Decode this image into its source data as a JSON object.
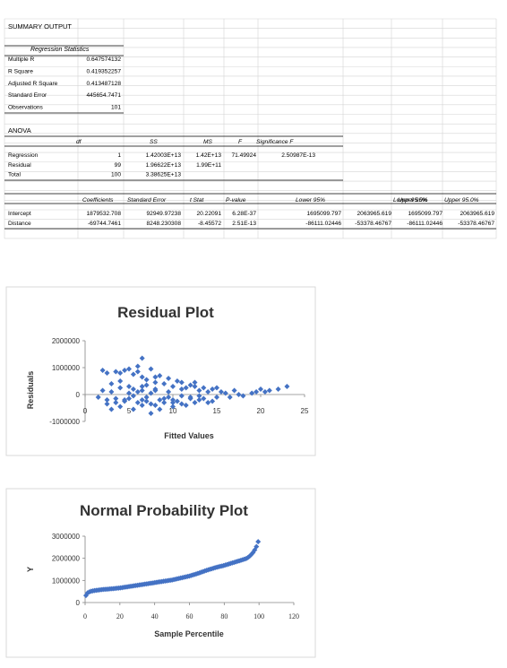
{
  "summary": {
    "title": "SUMMARY OUTPUT",
    "reg_stats_header": "Regression Statistics",
    "reg_stats": [
      {
        "label": "Multiple R",
        "value": "0.647574132"
      },
      {
        "label": "R Square",
        "value": "0.419352257"
      },
      {
        "label": "Adjusted R Square",
        "value": "0.413487128"
      },
      {
        "label": "Standard Error",
        "value": "445654.7471"
      },
      {
        "label": "Observations",
        "value": "101"
      }
    ],
    "anova_title": "ANOVA",
    "anova_headers": [
      "df",
      "SS",
      "MS",
      "F",
      "Significance F"
    ],
    "anova_rows": [
      {
        "label": "Regression",
        "df": "1",
        "ss": "1.42003E+13",
        "ms": "1.42E+13",
        "f": "71.49924",
        "sigf": "2.50987E-13"
      },
      {
        "label": "Residual",
        "df": "99",
        "ss": "1.96622E+13",
        "ms": "1.99E+11",
        "f": "",
        "sigf": ""
      },
      {
        "label": "Total",
        "df": "100",
        "ss": "3.38625E+13",
        "ms": "",
        "f": "",
        "sigf": ""
      }
    ],
    "coef_headers": [
      "Coefficients",
      "Standard Error",
      "t Stat",
      "P-value",
      "Lower 95%",
      "Upper 95%",
      "Lower 95.0%",
      "Upper 95.0%"
    ],
    "coef_rows": [
      {
        "label": "Intercept",
        "values": [
          "1879532.708",
          "92949.97238",
          "20.22091",
          "6.28E-37",
          "1695099.797",
          "2063965.619",
          "1695099.797",
          "2063965.619"
        ]
      },
      {
        "label": "Distance",
        "values": [
          "-69744.7461",
          "8248.230308",
          "-8.45572",
          "2.51E-13",
          "-86111.02446",
          "-53378.46767",
          "-86111.02446",
          "-53378.46767"
        ]
      }
    ]
  },
  "colors": {
    "marker": "#4472c4",
    "grid": "#d9d9d9",
    "axis": "#868686"
  },
  "chart_data": [
    {
      "type": "scatter",
      "title": "Residual Plot",
      "xlabel": "Fitted Values",
      "ylabel": "Residuals",
      "xlim": [
        0,
        25
      ],
      "ylim": [
        -1000000,
        2000000
      ],
      "xticks": [
        "0",
        "5",
        "10",
        "15",
        "20",
        "25"
      ],
      "yticks": [
        "-1000000",
        "0",
        "1000000",
        "2000000"
      ],
      "points": [
        [
          1.5,
          -100000
        ],
        [
          2,
          150000
        ],
        [
          2.5,
          -350000
        ],
        [
          3,
          -550000
        ],
        [
          3,
          100000
        ],
        [
          3.5,
          -300000
        ],
        [
          4,
          250000
        ],
        [
          4,
          -450000
        ],
        [
          4.5,
          -250000
        ],
        [
          5,
          -150000
        ],
        [
          5,
          50000
        ],
        [
          5.5,
          200000
        ],
        [
          5.5,
          -550000
        ],
        [
          6,
          -300000
        ],
        [
          6,
          100000
        ],
        [
          6.5,
          -400000
        ],
        [
          6.5,
          300000
        ],
        [
          7,
          -100000
        ],
        [
          7,
          -250000
        ],
        [
          7.5,
          -700000
        ],
        [
          7.5,
          50000
        ],
        [
          8,
          -400000
        ],
        [
          8,
          150000
        ],
        [
          8.5,
          -200000
        ],
        [
          8.5,
          -550000
        ],
        [
          9,
          -300000
        ],
        [
          9.5,
          -100000
        ],
        [
          10,
          -450000
        ],
        [
          10,
          -200000
        ],
        [
          10.5,
          -250000
        ],
        [
          11,
          -350000
        ],
        [
          11,
          -50000
        ],
        [
          11.5,
          -400000
        ],
        [
          12,
          -150000
        ],
        [
          12.5,
          -300000
        ],
        [
          13,
          -200000
        ],
        [
          13.5,
          -150000
        ],
        [
          14,
          -300000
        ],
        [
          14.5,
          -250000
        ],
        [
          15,
          -100000
        ],
        [
          2.5,
          -200000
        ],
        [
          3.5,
          -150000
        ],
        [
          4.5,
          -200000
        ],
        [
          5.5,
          -50000
        ],
        [
          6.5,
          -200000
        ],
        [
          7.5,
          -350000
        ],
        [
          9,
          -150000
        ],
        [
          10,
          -300000
        ],
        [
          12,
          -100000
        ],
        [
          13,
          -50000
        ],
        [
          2,
          900000
        ],
        [
          2.5,
          800000
        ],
        [
          3.5,
          850000
        ],
        [
          4,
          800000
        ],
        [
          4.5,
          900000
        ],
        [
          5,
          950000
        ],
        [
          5.5,
          750000
        ],
        [
          6,
          1050000
        ],
        [
          6,
          850000
        ],
        [
          6.5,
          1350000
        ],
        [
          6.5,
          650000
        ],
        [
          7,
          550000
        ],
        [
          7.5,
          950000
        ],
        [
          8,
          650000
        ],
        [
          8,
          450000
        ],
        [
          8.5,
          700000
        ],
        [
          9,
          400000
        ],
        [
          9.5,
          600000
        ],
        [
          10,
          300000
        ],
        [
          10.5,
          500000
        ],
        [
          11,
          450000
        ],
        [
          11.5,
          250000
        ],
        [
          12,
          350000
        ],
        [
          12.5,
          300000
        ],
        [
          13,
          150000
        ],
        [
          13.5,
          250000
        ],
        [
          14,
          100000
        ],
        [
          14.5,
          200000
        ],
        [
          15,
          250000
        ],
        [
          15.5,
          100000
        ],
        [
          16,
          50000
        ],
        [
          17,
          150000
        ],
        [
          17.5,
          0
        ],
        [
          18,
          -50000
        ],
        [
          19,
          50000
        ],
        [
          19.5,
          100000
        ],
        [
          20,
          200000
        ],
        [
          20.5,
          100000
        ],
        [
          21,
          150000
        ],
        [
          22,
          200000
        ],
        [
          23,
          300000
        ],
        [
          3,
          400000
        ],
        [
          4,
          500000
        ],
        [
          5,
          300000
        ],
        [
          6.5,
          150000
        ],
        [
          7,
          350000
        ],
        [
          8,
          200000
        ],
        [
          9.5,
          100000
        ],
        [
          11,
          200000
        ],
        [
          12.5,
          450000
        ],
        [
          16.5,
          -100000
        ]
      ]
    },
    {
      "type": "scatter",
      "title": "Normal Probability Plot",
      "xlabel": "Sample Percentile",
      "ylabel": "Y",
      "xlim": [
        0,
        120
      ],
      "ylim": [
        0,
        3000000
      ],
      "xticks": [
        "0",
        "20",
        "40",
        "60",
        "80",
        "100",
        "120"
      ],
      "yticks": [
        "0",
        "1000000",
        "2000000",
        "3000000"
      ],
      "curve": [
        [
          0.5,
          320000
        ],
        [
          1,
          420000
        ],
        [
          3,
          500000
        ],
        [
          5,
          540000
        ],
        [
          10,
          590000
        ],
        [
          15,
          620000
        ],
        [
          20,
          660000
        ],
        [
          25,
          720000
        ],
        [
          30,
          780000
        ],
        [
          35,
          840000
        ],
        [
          40,
          900000
        ],
        [
          45,
          960000
        ],
        [
          50,
          1020000
        ],
        [
          55,
          1110000
        ],
        [
          60,
          1200000
        ],
        [
          65,
          1320000
        ],
        [
          70,
          1460000
        ],
        [
          75,
          1580000
        ],
        [
          80,
          1680000
        ],
        [
          85,
          1800000
        ],
        [
          90,
          1920000
        ],
        [
          93,
          2000000
        ],
        [
          95,
          2120000
        ],
        [
          97,
          2300000
        ],
        [
          98,
          2450000
        ],
        [
          99,
          2600000
        ],
        [
          99.5,
          2750000
        ]
      ]
    }
  ]
}
